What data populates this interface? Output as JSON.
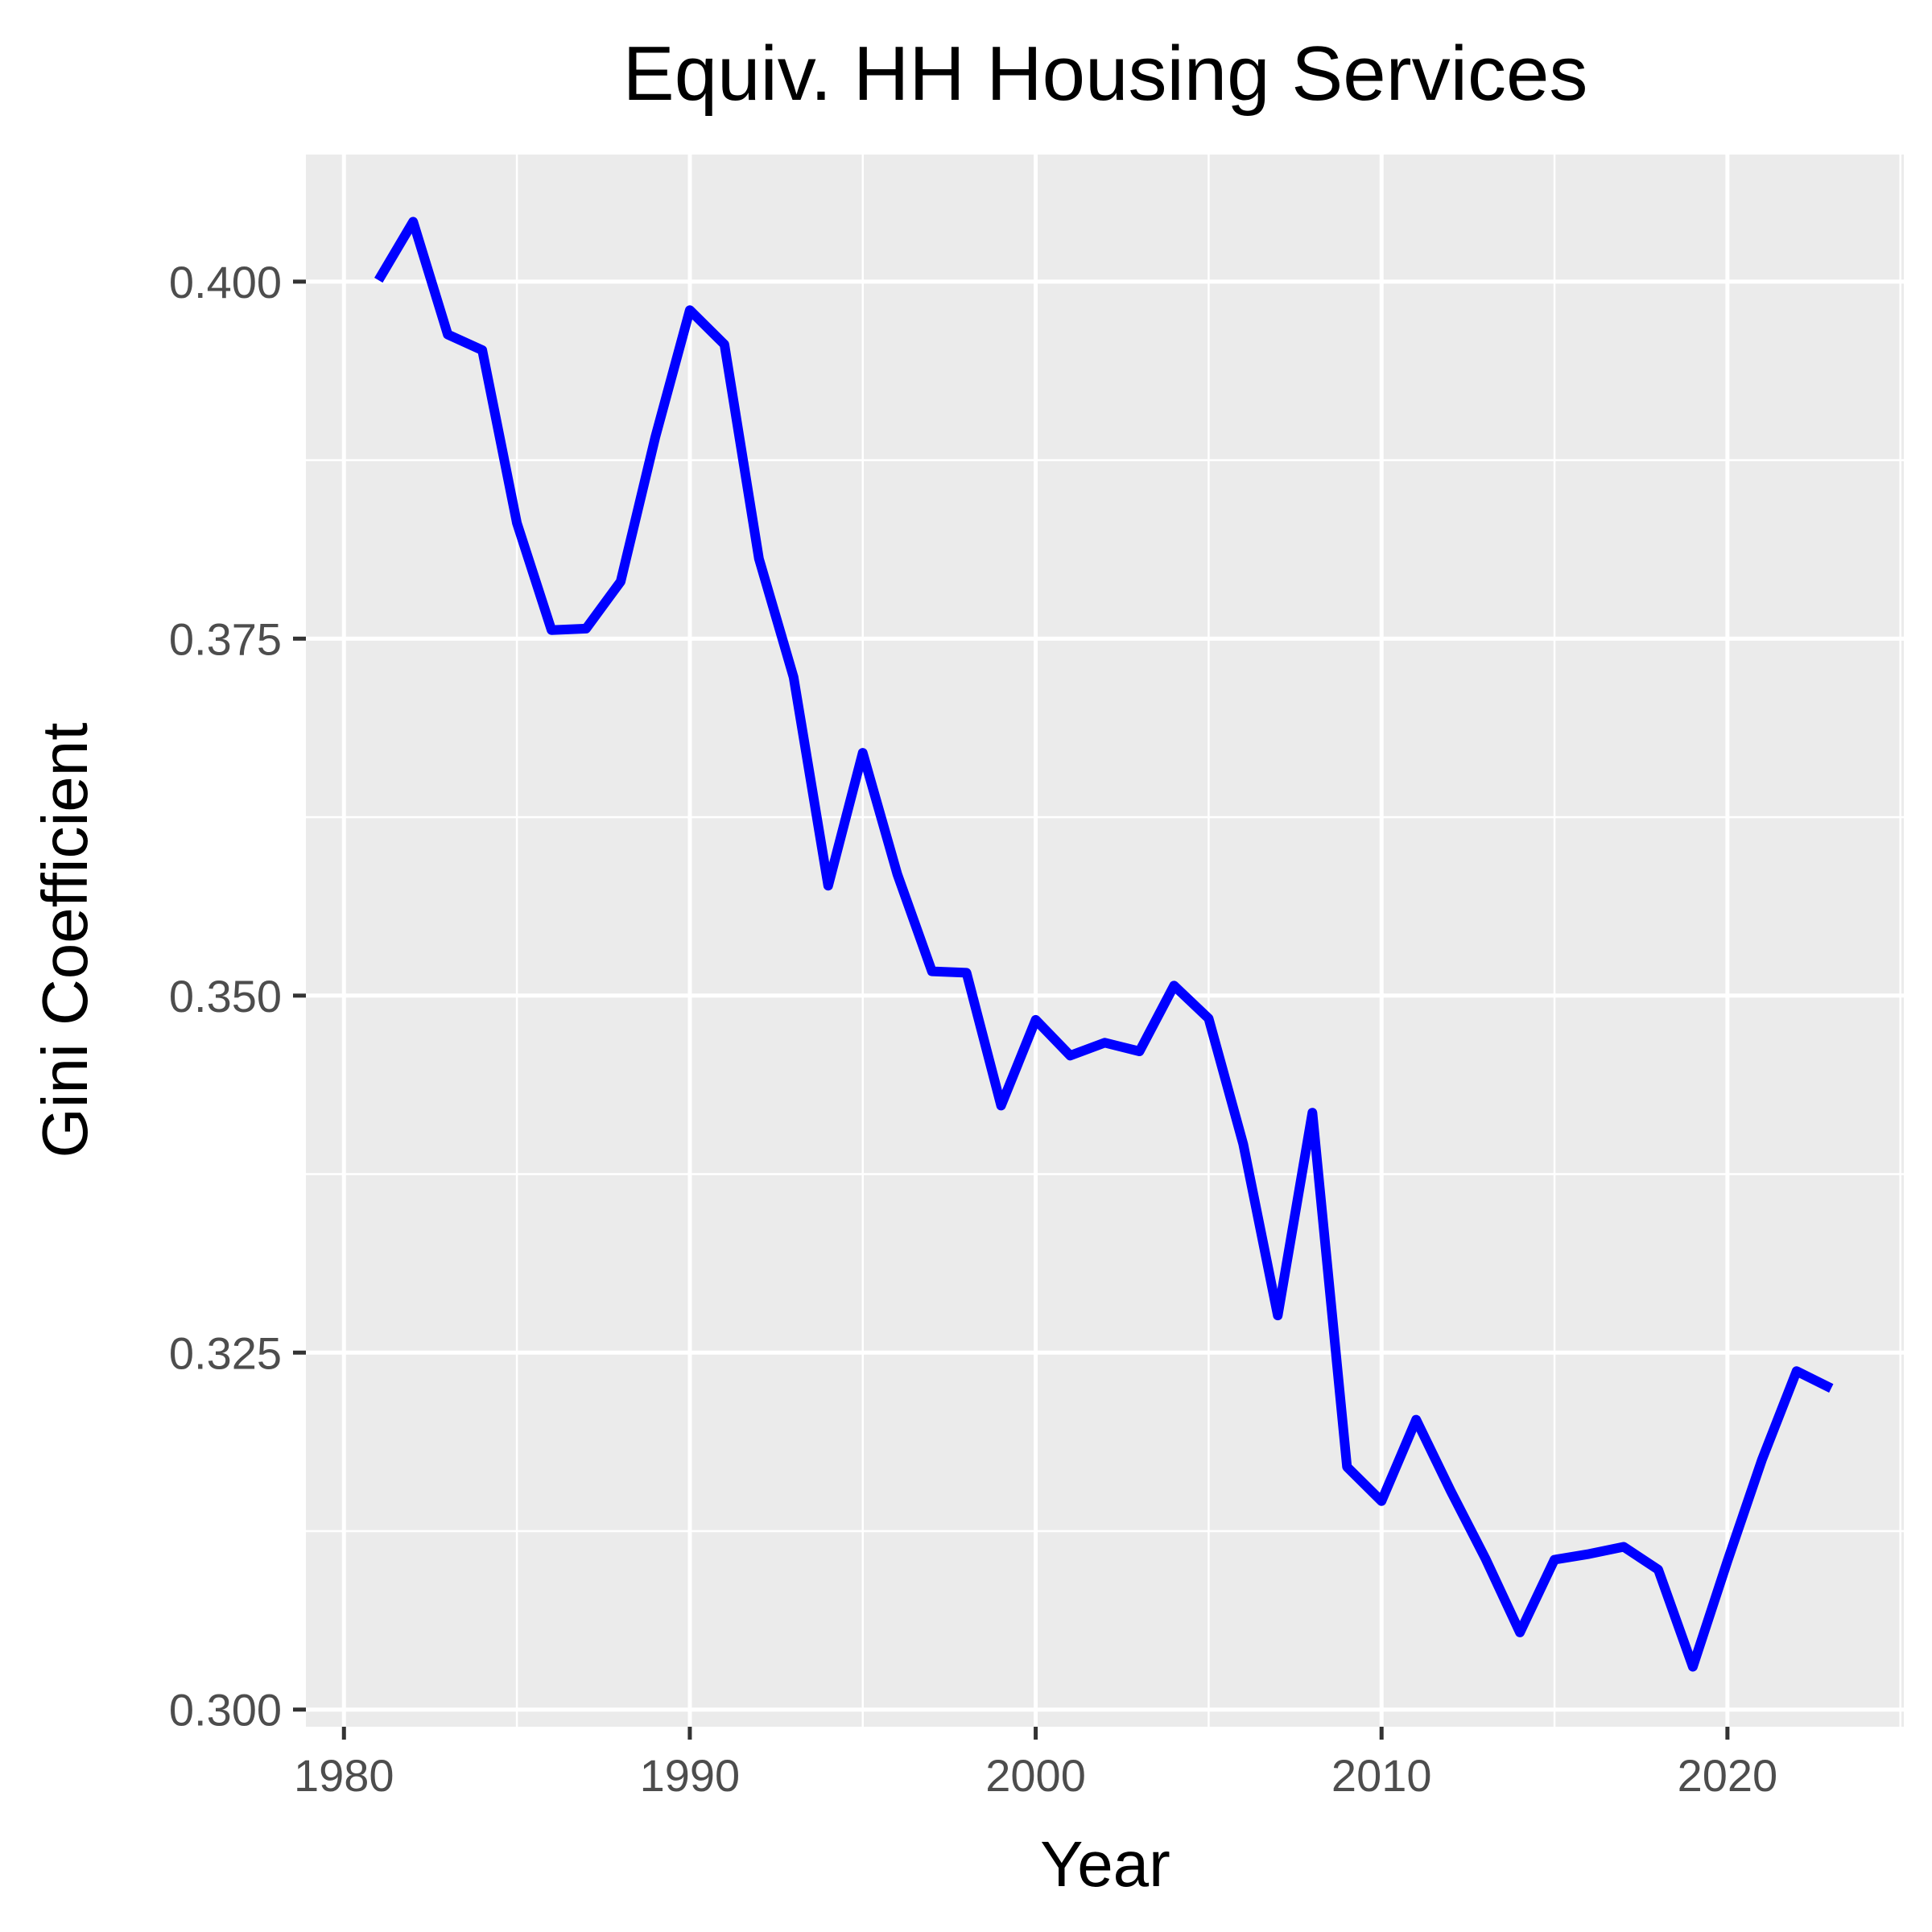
{
  "chart_data": {
    "type": "line",
    "title": "Equiv. HH Housing Services",
    "xlabel": "Year",
    "ylabel": "Gini Coefficient",
    "xlim": [
      1978.9,
      2025.1
    ],
    "ylim": [
      0.2988,
      0.4089
    ],
    "x_ticks": [
      1980,
      1990,
      2000,
      2010,
      2020
    ],
    "x_tick_labels": [
      "1980",
      "1990",
      "2000",
      "2010",
      "2020"
    ],
    "y_ticks": [
      0.3,
      0.325,
      0.35,
      0.375,
      0.4
    ],
    "y_tick_labels": [
      "0.300",
      "0.325",
      "0.350",
      "0.375",
      "0.400"
    ],
    "grid": true,
    "background": "#ebebeb",
    "grid_color": "#ffffff",
    "line_color": "#0000ff",
    "series": [
      {
        "x": [
          1981,
          1982,
          1983,
          1984,
          1985,
          1986,
          1987,
          1988,
          1989,
          1990,
          1991,
          1992,
          1993,
          1994,
          1995,
          1996,
          1997,
          1998,
          1999,
          2000,
          2001,
          2002,
          2003,
          2004,
          2005,
          2006,
          2007,
          2008,
          2009,
          2010,
          2011,
          2012,
          2013,
          2014,
          2015,
          2016,
          2017,
          2018,
          2019,
          2020,
          2021,
          2022,
          2023
        ],
        "values": [
          0.4001,
          0.4042,
          0.3963,
          0.3952,
          0.3831,
          0.3756,
          0.3757,
          0.379,
          0.3891,
          0.398,
          0.3956,
          0.3806,
          0.3723,
          0.3577,
          0.367,
          0.3585,
          0.3517,
          0.3516,
          0.3423,
          0.3483,
          0.3458,
          0.3467,
          0.3461,
          0.3507,
          0.3484,
          0.3396,
          0.3276,
          0.3418,
          0.317,
          0.3146,
          0.3203,
          0.3153,
          0.3106,
          0.3054,
          0.3105,
          0.3109,
          0.3114,
          0.3098,
          0.303,
          0.3104,
          0.3175,
          0.3237,
          0.3225
        ]
      }
    ]
  }
}
